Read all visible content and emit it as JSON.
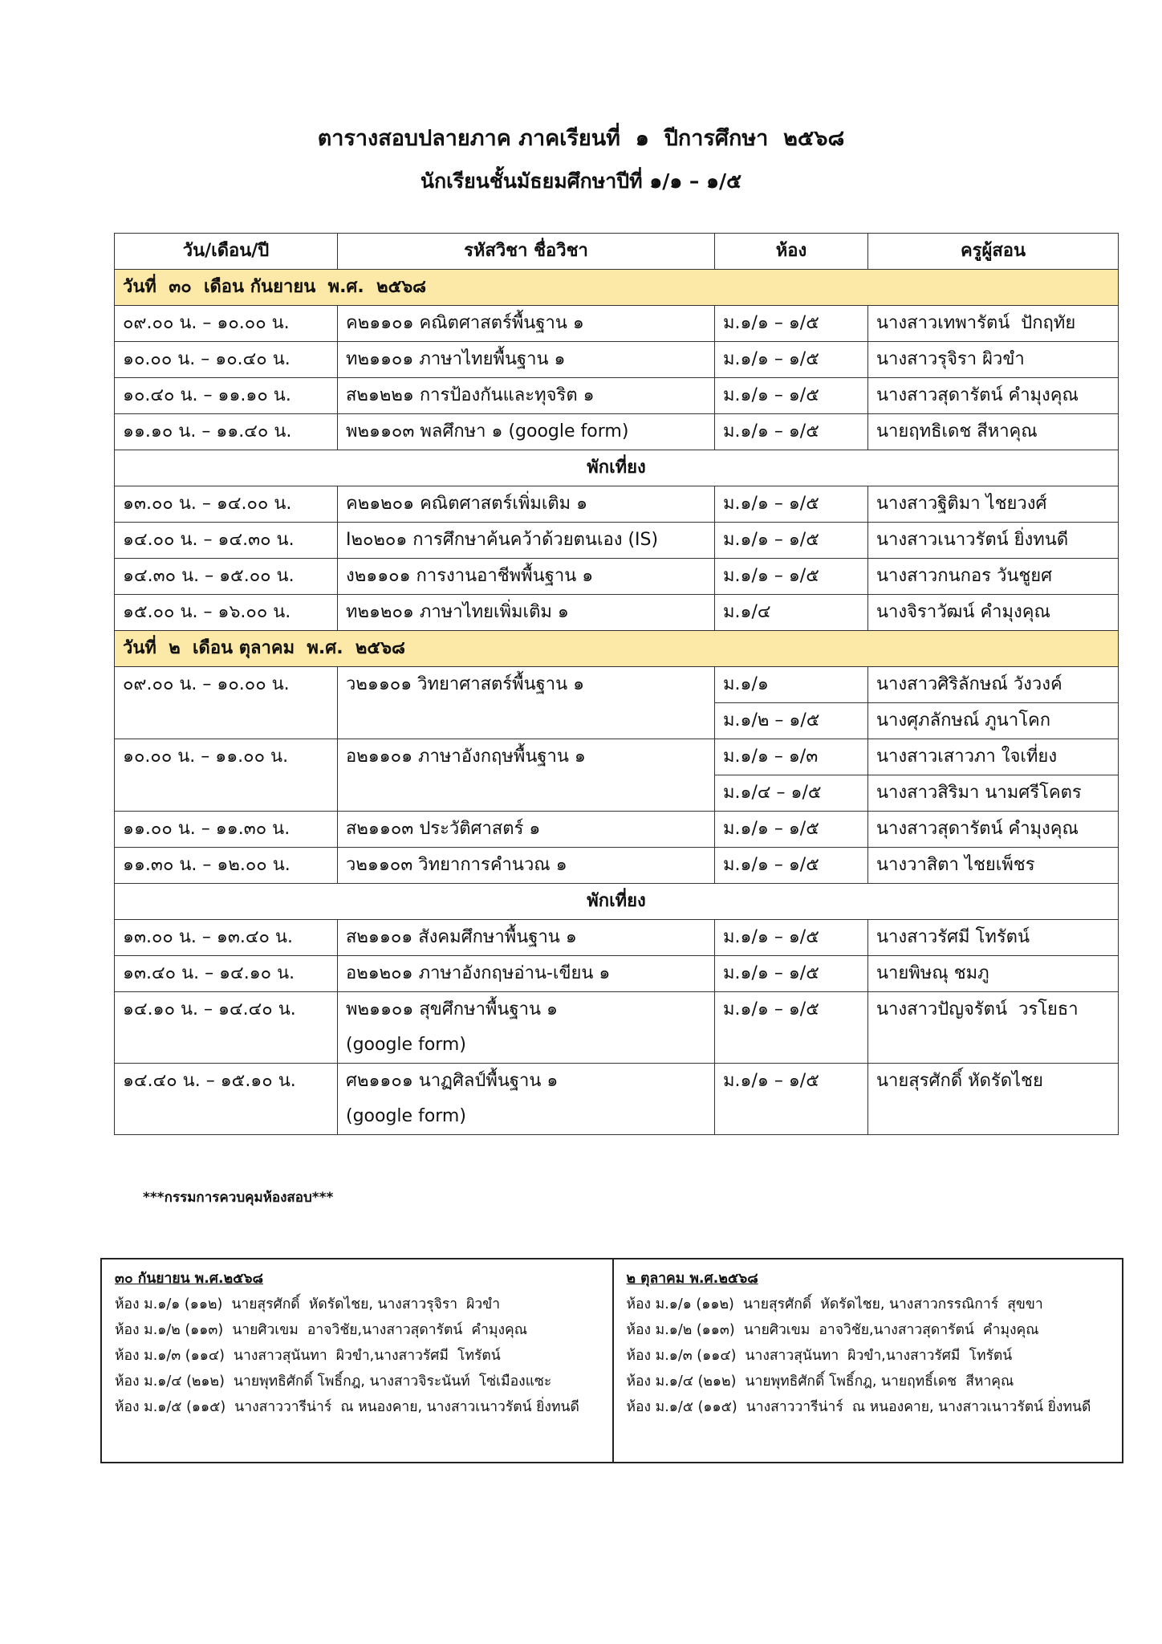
{
  "header": {
    "title": "ตารางสอบปลายภาค ภาคเรียนที่  ๑  ปีการศึกษา  ๒๕๖๘",
    "subtitle": "นักเรียนชั้นมัธยมศึกษาปีที่ ๑/๑ – ๑/๕"
  },
  "table": {
    "columns": [
      "วัน/เดือน/ปี",
      "รหัสวิชา ชื่อวิชา",
      "ห้อง",
      "ครูผู้สอน"
    ],
    "sections": [
      {
        "day": "วันที่  ๓๐  เดือน กันยายน  พ.ศ.  ๒๕๖๘",
        "rows": [
          {
            "time": "๐๙.๐๐ น. – ๑๐.๐๐ น.",
            "subject": "ค๒๑๑๐๑ คณิตศาสตร์พื้นฐาน ๑",
            "room": "ม.๑/๑ – ๑/๕",
            "teacher": "นางสาวเทพารัตน์  ปักฤทัย"
          },
          {
            "time": "๑๐.๐๐ น. – ๑๐.๔๐ น.",
            "subject": "ท๒๑๑๐๑ ภาษาไทยพื้นฐาน ๑",
            "room": "ม.๑/๑ – ๑/๕",
            "teacher": "นางสาวรุจิรา ผิวขำ"
          },
          {
            "time": "๑๐.๔๐ น. – ๑๑.๑๐ น.",
            "subject": "ส๒๑๒๒๑ การป้องกันและทุจริต ๑",
            "room": "ม.๑/๑ – ๑/๕",
            "teacher": "นางสาวสุดารัตน์ คำมุงคุณ"
          },
          {
            "time": "๑๑.๑๐ น. – ๑๑.๔๐ น.",
            "subject": "พ๒๑๑๐๓ พลศึกษา ๑ (google form)",
            "room": "ม.๑/๑ – ๑/๕",
            "teacher": "นายฤทธิเดช สีหาคุณ"
          },
          {
            "break": "พักเที่ยง"
          },
          {
            "time": "๑๓.๐๐ น. – ๑๔.๐๐ น.",
            "subject": "ค๒๑๒๐๑ คณิตศาสตร์เพิ่มเติม ๑",
            "room": "ม.๑/๑ – ๑/๕",
            "teacher": "นางสาวฐิติมา ไชยวงศ์"
          },
          {
            "time": "๑๔.๐๐ น. – ๑๔.๓๐ น.",
            "subject": "I๒๐๒๐๑ การศึกษาค้นคว้าด้วยตนเอง (IS)",
            "room": "ม.๑/๑ – ๑/๕",
            "teacher": "นางสาวเนาวรัตน์ ยิ่งทนดี"
          },
          {
            "time": "๑๔.๓๐ น. – ๑๕.๐๐ น.",
            "subject": "ง๒๑๑๐๑ การงานอาชีพพื้นฐาน ๑",
            "room": "ม.๑/๑ – ๑/๕",
            "teacher": "นางสาวกนกอร วันชูยศ"
          },
          {
            "time": "๑๕.๐๐ น. – ๑๖.๐๐ น.",
            "subject": "ท๒๑๒๐๑ ภาษาไทยเพิ่มเติม ๑",
            "room": "ม.๑/๔",
            "teacher": "นางจิราวัฒน์ คำมุงคุณ"
          }
        ]
      },
      {
        "day": "วันที่  ๒  เดือน ตุลาคม  พ.ศ.  ๒๕๖๘",
        "rows": [
          {
            "time": "๐๙.๐๐ น. – ๑๐.๐๐ น.",
            "subject": "ว๒๑๑๐๑ วิทยาศาสตร์พื้นฐาน ๑",
            "allocations": [
              {
                "room": "ม.๑/๑",
                "teacher": "นางสาวศิริลักษณ์ วังวงค์"
              },
              {
                "room": "ม.๑/๒ – ๑/๕",
                "teacher": "นางศุภลักษณ์ ภูนาโคก"
              }
            ]
          },
          {
            "time": "๑๐.๐๐ น. – ๑๑.๐๐ น.",
            "subject": "อ๒๑๑๐๑ ภาษาอังกฤษพื้นฐาน ๑",
            "allocations": [
              {
                "room": "ม.๑/๑ – ๑/๓",
                "teacher": "นางสาวเสาวภา ใจเที่ยง"
              },
              {
                "room": "ม.๑/๔ – ๑/๕",
                "teacher": "นางสาวสิริมา นามศรีโคตร"
              }
            ]
          },
          {
            "time": "๑๑.๐๐ น. – ๑๑.๓๐ น.",
            "subject": "ส๒๑๑๐๓ ประวัติศาสตร์ ๑",
            "room": "ม.๑/๑ – ๑/๕",
            "teacher": "นางสาวสุดารัตน์ คำมุงคุณ"
          },
          {
            "time": "๑๑.๓๐ น. – ๑๒.๐๐ น.",
            "subject": "ว๒๑๑๐๓ วิทยาการคำนวณ ๑",
            "room": "ม.๑/๑ – ๑/๕",
            "teacher": "นางวาสิตา ไชยเพ็ชร"
          },
          {
            "break": "พักเที่ยง"
          },
          {
            "time": "๑๓.๐๐ น. – ๑๓.๔๐ น.",
            "subject": "ส๒๑๑๐๑ สังคมศึกษาพื้นฐาน ๑",
            "room": "ม.๑/๑ – ๑/๕",
            "teacher": "นางสาวรัศมี โทรัตน์"
          },
          {
            "time": "๑๓.๔๐ น. – ๑๔.๑๐ น.",
            "subject": "อ๒๑๒๐๑ ภาษาอังกฤษอ่าน-เขียน ๑",
            "room": "ม.๑/๑ – ๑/๕",
            "teacher": "นายพิษณุ ชมภู"
          },
          {
            "time": "๑๔.๑๐ น. – ๑๔.๔๐ น.",
            "subject": "พ๒๑๑๐๑ สุขศึกษาพื้นฐาน ๑",
            "subject_note": "(google form)",
            "room": "ม.๑/๑ – ๑/๕",
            "teacher": "นางสาวปัญจรัตน์  วรโยธา"
          },
          {
            "time": "๑๔.๔๐ น. – ๑๕.๑๐ น.",
            "subject": "ศ๒๑๑๐๑ นาฏศิลป์พื้นฐาน ๑",
            "subject_note": "(google form)",
            "room": "ม.๑/๑ – ๑/๕",
            "teacher": "นายสุรศักดิ์ หัดรัดไชย"
          }
        ]
      }
    ]
  },
  "committee": {
    "title": "***กรรมการควบคุมห้องสอบ***",
    "days": [
      {
        "date": "๓๐ กันยายน พ.ศ.๒๕๖๘",
        "lines": [
          "ห้อง ม.๑/๑ (๑๑๒)  นายสุรศักดิ์  หัดรัดไชย, นางสาวรุจิรา  ผิวขำ",
          "ห้อง ม.๑/๒ (๑๑๓)  นายศิวเขม  อาจวิชัย,นางสาวสุดารัตน์  คำมุงคุณ",
          "ห้อง ม.๑/๓ (๑๑๔)  นางสาวสุนันทา  ผิวขำ,นางสาวรัศมี  โทรัตน์",
          "ห้อง ม.๑/๔ (๒๑๒)  นายพุทธิศักดิ์ โพธิ์กฎ, นางสาวจิระนันท์  โซ่เมืองแซะ",
          "ห้อง ม.๑/๕ (๑๑๕)  นางสาววารีน่าร์  ณ หนองคาย, นางสาวเนาวรัตน์ ยิ่งทนดี"
        ]
      },
      {
        "date": "๒ ตุลาคม พ.ศ.๒๕๖๘",
        "lines": [
          "ห้อง ม.๑/๑ (๑๑๒)  นายสุรศักดิ์  หัดรัดไชย, นางสาวกรรณิการ์  สุขขา",
          "ห้อง ม.๑/๒ (๑๑๓)  นายศิวเขม  อาจวิชัย,นางสาวสุดารัตน์  คำมุงคุณ",
          "ห้อง ม.๑/๓ (๑๑๔)  นางสาวสุนันทา  ผิวขำ,นางสาวรัศมี  โทรัตน์",
          "ห้อง ม.๑/๔ (๒๑๒)  นายพุทธิศักดิ์ โพธิ์กฎ, นายฤทธิ์เดช  สีหาคุณ",
          "ห้อง ม.๑/๕ (๑๑๕)  นางสาววารีน่าร์  ณ หนองคาย, นางสาวเนาวรัตน์ ยิ่งทนดี"
        ]
      }
    ]
  }
}
